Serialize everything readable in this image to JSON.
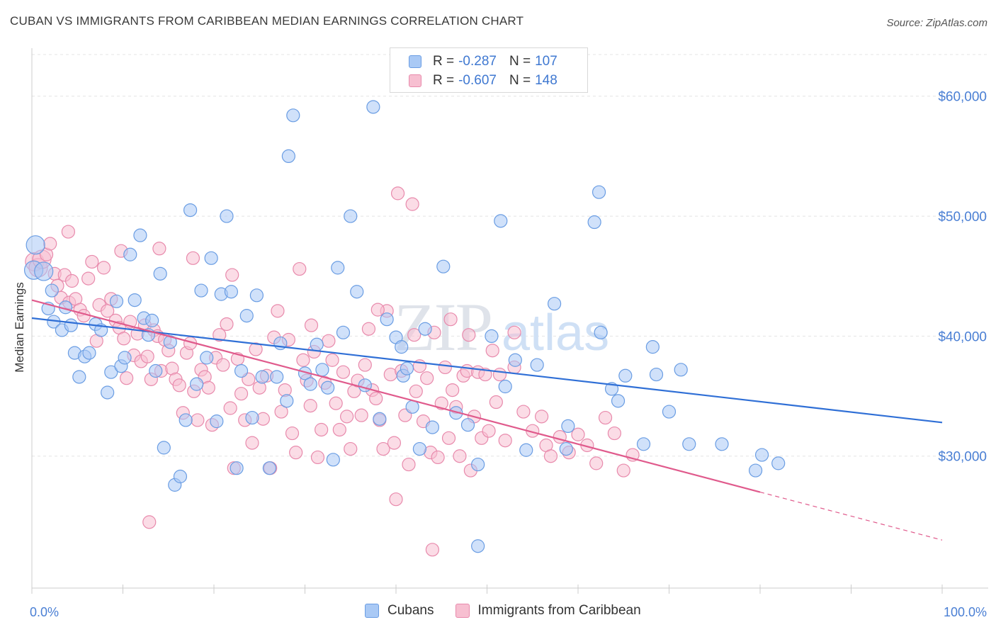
{
  "title": "CUBAN VS IMMIGRANTS FROM CARIBBEAN MEDIAN EARNINGS CORRELATION CHART",
  "source": "Source: ZipAtlas.com",
  "watermark": {
    "zip": "ZIP",
    "atlas": "atlas"
  },
  "legend": {
    "rows": [
      {
        "r_label": "R = ",
        "r_value": "-0.287",
        "n_label": "N = ",
        "n_value": "107",
        "color": "#a9c9f5",
        "border": "#6a9de3"
      },
      {
        "r_label": "R = ",
        "r_value": "-0.607",
        "n_label": "N = ",
        "n_value": "148",
        "color": "#f7bfd1",
        "border": "#e88aac"
      }
    ]
  },
  "bottom_legend": [
    {
      "label": "Cubans",
      "color": "#a9c9f5",
      "border": "#6a9de3"
    },
    {
      "label": "Immigrants from Caribbean",
      "color": "#f7bfd1",
      "border": "#e88aac"
    }
  ],
  "chart_data": {
    "type": "scatter",
    "title": "CUBAN VS IMMIGRANTS FROM CARIBBEAN MEDIAN EARNINGS CORRELATION CHART",
    "ylabel": "Median Earnings",
    "xlabel": "",
    "xlim": [
      0,
      100
    ],
    "ylim": [
      19000,
      64000
    ],
    "x_tick_labels": [
      "0.0%",
      "100.0%"
    ],
    "y_ticks": [
      30000,
      40000,
      50000,
      60000
    ],
    "y_tick_labels": [
      "$30,000",
      "$40,000",
      "$50,000",
      "$60,000"
    ],
    "grid": true,
    "legend_position": "top-center",
    "series": [
      {
        "name": "Cubans",
        "color": "#6a9de3",
        "fill": "#a9c9f5",
        "trend": {
          "x": [
            0,
            100
          ],
          "y": [
            41500,
            32800
          ],
          "color": "#2f6fd6"
        },
        "points": [
          [
            0.2,
            45500
          ],
          [
            0.4,
            47600
          ],
          [
            1.3,
            45400
          ],
          [
            1.8,
            42300
          ],
          [
            2.2,
            43800
          ],
          [
            2.4,
            41200
          ],
          [
            3.3,
            40500
          ],
          [
            3.7,
            42400
          ],
          [
            4.3,
            40900
          ],
          [
            4.7,
            38600
          ],
          [
            5.2,
            36600
          ],
          [
            5.8,
            38300
          ],
          [
            6.3,
            38600
          ],
          [
            7.0,
            41000
          ],
          [
            7.6,
            40500
          ],
          [
            8.3,
            35300
          ],
          [
            8.7,
            37000
          ],
          [
            9.3,
            42900
          ],
          [
            9.8,
            37500
          ],
          [
            10.2,
            38200
          ],
          [
            10.8,
            46800
          ],
          [
            11.3,
            43000
          ],
          [
            11.9,
            48400
          ],
          [
            12.3,
            41500
          ],
          [
            12.8,
            40100
          ],
          [
            13.2,
            41300
          ],
          [
            13.6,
            37100
          ],
          [
            14.1,
            45200
          ],
          [
            14.5,
            30700
          ],
          [
            15.2,
            39500
          ],
          [
            15.7,
            27600
          ],
          [
            16.3,
            28300
          ],
          [
            16.9,
            33000
          ],
          [
            17.4,
            50500
          ],
          [
            18.1,
            36000
          ],
          [
            18.6,
            43800
          ],
          [
            19.2,
            38200
          ],
          [
            19.7,
            46500
          ],
          [
            20.3,
            32900
          ],
          [
            20.8,
            43500
          ],
          [
            21.4,
            50000
          ],
          [
            21.9,
            43700
          ],
          [
            22.5,
            29000
          ],
          [
            23.0,
            37100
          ],
          [
            23.6,
            41700
          ],
          [
            24.2,
            33200
          ],
          [
            24.7,
            43400
          ],
          [
            25.3,
            36600
          ],
          [
            26.1,
            29000
          ],
          [
            26.9,
            36600
          ],
          [
            27.3,
            39400
          ],
          [
            28.0,
            34600
          ],
          [
            28.2,
            55000
          ],
          [
            28.7,
            58400
          ],
          [
            30.0,
            36900
          ],
          [
            30.6,
            36000
          ],
          [
            31.3,
            39300
          ],
          [
            31.9,
            37200
          ],
          [
            32.5,
            35700
          ],
          [
            33.1,
            29700
          ],
          [
            33.6,
            45700
          ],
          [
            34.2,
            40300
          ],
          [
            35.0,
            50000
          ],
          [
            35.7,
            43700
          ],
          [
            36.6,
            35900
          ],
          [
            37.5,
            59100
          ],
          [
            38.2,
            33100
          ],
          [
            39.0,
            41400
          ],
          [
            40.0,
            39900
          ],
          [
            40.8,
            36700
          ],
          [
            41.2,
            37300
          ],
          [
            41.8,
            34100
          ],
          [
            42.6,
            30600
          ],
          [
            43.2,
            40600
          ],
          [
            44.0,
            32400
          ],
          [
            45.2,
            45800
          ],
          [
            46.6,
            33600
          ],
          [
            47.9,
            32600
          ],
          [
            49.0,
            29300
          ],
          [
            50.5,
            40000
          ],
          [
            51.5,
            49600
          ],
          [
            52.0,
            35800
          ],
          [
            53.1,
            38000
          ],
          [
            54.3,
            30500
          ],
          [
            55.5,
            37600
          ],
          [
            57.4,
            42700
          ],
          [
            58.9,
            32500
          ],
          [
            61.8,
            49500
          ],
          [
            62.3,
            52000
          ],
          [
            62.5,
            40300
          ],
          [
            63.7,
            35600
          ],
          [
            64.4,
            34600
          ],
          [
            65.2,
            36700
          ],
          [
            67.2,
            31000
          ],
          [
            68.2,
            39100
          ],
          [
            68.6,
            36800
          ],
          [
            70.0,
            33700
          ],
          [
            71.3,
            37200
          ],
          [
            72.2,
            31000
          ],
          [
            75.8,
            31000
          ],
          [
            79.5,
            28800
          ],
          [
            80.2,
            30100
          ],
          [
            82.0,
            29400
          ],
          [
            49.0,
            22500
          ],
          [
            58.7,
            30600
          ],
          [
            40.6,
            39100
          ]
        ]
      },
      {
        "name": "Immigrants from Caribbean",
        "color": "#e88aac",
        "fill": "#f7bfd1",
        "trend": {
          "x": [
            0,
            80
          ],
          "y": [
            43000,
            27000
          ],
          "color": "#e05a8c",
          "dashed_to": [
            100,
            23000
          ]
        },
        "points": [
          [
            0.3,
            46200
          ],
          [
            0.7,
            45700
          ],
          [
            1.1,
            46400
          ],
          [
            1.6,
            46800
          ],
          [
            2.0,
            47700
          ],
          [
            2.5,
            45200
          ],
          [
            2.8,
            44200
          ],
          [
            3.2,
            43200
          ],
          [
            3.6,
            45100
          ],
          [
            4.1,
            42800
          ],
          [
            4.4,
            44600
          ],
          [
            4.8,
            43100
          ],
          [
            5.3,
            42200
          ],
          [
            5.7,
            41700
          ],
          [
            6.2,
            44800
          ],
          [
            6.6,
            46200
          ],
          [
            7.1,
            39600
          ],
          [
            7.4,
            42600
          ],
          [
            7.9,
            45700
          ],
          [
            8.3,
            42100
          ],
          [
            8.7,
            43100
          ],
          [
            9.2,
            41300
          ],
          [
            9.6,
            40700
          ],
          [
            10.1,
            39800
          ],
          [
            10.4,
            36500
          ],
          [
            10.8,
            41200
          ],
          [
            11.2,
            38400
          ],
          [
            11.6,
            40200
          ],
          [
            12.0,
            37900
          ],
          [
            12.4,
            40900
          ],
          [
            12.7,
            38300
          ],
          [
            13.1,
            36400
          ],
          [
            13.4,
            40500
          ],
          [
            13.8,
            40000
          ],
          [
            14.2,
            37100
          ],
          [
            14.6,
            39700
          ],
          [
            15.0,
            38800
          ],
          [
            15.4,
            37300
          ],
          [
            15.8,
            36400
          ],
          [
            16.2,
            35900
          ],
          [
            16.6,
            33600
          ],
          [
            17.0,
            38600
          ],
          [
            17.4,
            39400
          ],
          [
            17.8,
            35400
          ],
          [
            18.2,
            33000
          ],
          [
            18.6,
            37200
          ],
          [
            19.0,
            36600
          ],
          [
            19.4,
            35700
          ],
          [
            19.8,
            32600
          ],
          [
            20.2,
            38200
          ],
          [
            20.6,
            40100
          ],
          [
            21.0,
            37600
          ],
          [
            21.4,
            41000
          ],
          [
            21.8,
            34000
          ],
          [
            22.2,
            29000
          ],
          [
            22.6,
            38100
          ],
          [
            23.0,
            35200
          ],
          [
            23.4,
            33000
          ],
          [
            23.8,
            36400
          ],
          [
            24.2,
            31100
          ],
          [
            24.6,
            38900
          ],
          [
            25.0,
            35700
          ],
          [
            25.4,
            33100
          ],
          [
            25.8,
            36700
          ],
          [
            26.2,
            29000
          ],
          [
            26.6,
            39900
          ],
          [
            27.0,
            42100
          ],
          [
            27.4,
            33700
          ],
          [
            27.8,
            35500
          ],
          [
            28.2,
            39700
          ],
          [
            28.6,
            31900
          ],
          [
            29.0,
            30300
          ],
          [
            29.4,
            45600
          ],
          [
            29.8,
            38000
          ],
          [
            30.2,
            36300
          ],
          [
            30.6,
            34200
          ],
          [
            31.0,
            38700
          ],
          [
            31.4,
            29900
          ],
          [
            31.8,
            32200
          ],
          [
            32.2,
            36100
          ],
          [
            32.6,
            39600
          ],
          [
            33.0,
            38000
          ],
          [
            33.4,
            34400
          ],
          [
            33.8,
            32200
          ],
          [
            34.2,
            37000
          ],
          [
            34.6,
            33300
          ],
          [
            35.0,
            30600
          ],
          [
            35.4,
            35400
          ],
          [
            35.8,
            36300
          ],
          [
            36.2,
            33400
          ],
          [
            36.6,
            37600
          ],
          [
            37.0,
            40600
          ],
          [
            37.4,
            35500
          ],
          [
            37.8,
            34800
          ],
          [
            38.2,
            33000
          ],
          [
            38.6,
            30600
          ],
          [
            39.0,
            42100
          ],
          [
            39.4,
            36800
          ],
          [
            39.8,
            31100
          ],
          [
            40.2,
            51900
          ],
          [
            40.6,
            37100
          ],
          [
            41.0,
            33400
          ],
          [
            41.4,
            29300
          ],
          [
            41.8,
            51000
          ],
          [
            42.2,
            35400
          ],
          [
            42.6,
            37500
          ],
          [
            43.0,
            32900
          ],
          [
            43.4,
            36500
          ],
          [
            43.8,
            30300
          ],
          [
            44.2,
            40300
          ],
          [
            44.6,
            29900
          ],
          [
            45.0,
            34400
          ],
          [
            45.4,
            37400
          ],
          [
            45.8,
            31500
          ],
          [
            46.2,
            35500
          ],
          [
            46.6,
            34100
          ],
          [
            47.0,
            30000
          ],
          [
            47.4,
            36700
          ],
          [
            47.8,
            37100
          ],
          [
            48.2,
            28800
          ],
          [
            48.6,
            33300
          ],
          [
            49.0,
            37000
          ],
          [
            49.4,
            31500
          ],
          [
            49.8,
            36800
          ],
          [
            50.2,
            32100
          ],
          [
            50.6,
            38800
          ],
          [
            51.0,
            34500
          ],
          [
            51.4,
            36800
          ],
          [
            52.0,
            31300
          ],
          [
            53.0,
            37400
          ],
          [
            54.0,
            33700
          ],
          [
            55.0,
            32100
          ],
          [
            56.0,
            33300
          ],
          [
            56.5,
            30900
          ],
          [
            57.0,
            30000
          ],
          [
            58.0,
            31600
          ],
          [
            59.0,
            30300
          ],
          [
            60.0,
            31800
          ],
          [
            61.0,
            30900
          ],
          [
            62.0,
            29400
          ],
          [
            63.0,
            33200
          ],
          [
            64.0,
            31900
          ],
          [
            65.0,
            28800
          ],
          [
            66.0,
            30100
          ],
          [
            4.0,
            48700
          ],
          [
            14.0,
            47300
          ],
          [
            12.9,
            24500
          ],
          [
            40.0,
            26400
          ],
          [
            44.0,
            22200
          ],
          [
            17.7,
            46500
          ],
          [
            9.8,
            47100
          ],
          [
            22.0,
            45100
          ],
          [
            38.0,
            42200
          ],
          [
            46.0,
            41400
          ],
          [
            30.7,
            40900
          ],
          [
            42.0,
            40100
          ],
          [
            48.0,
            40100
          ],
          [
            53.0,
            40300
          ]
        ]
      }
    ]
  }
}
